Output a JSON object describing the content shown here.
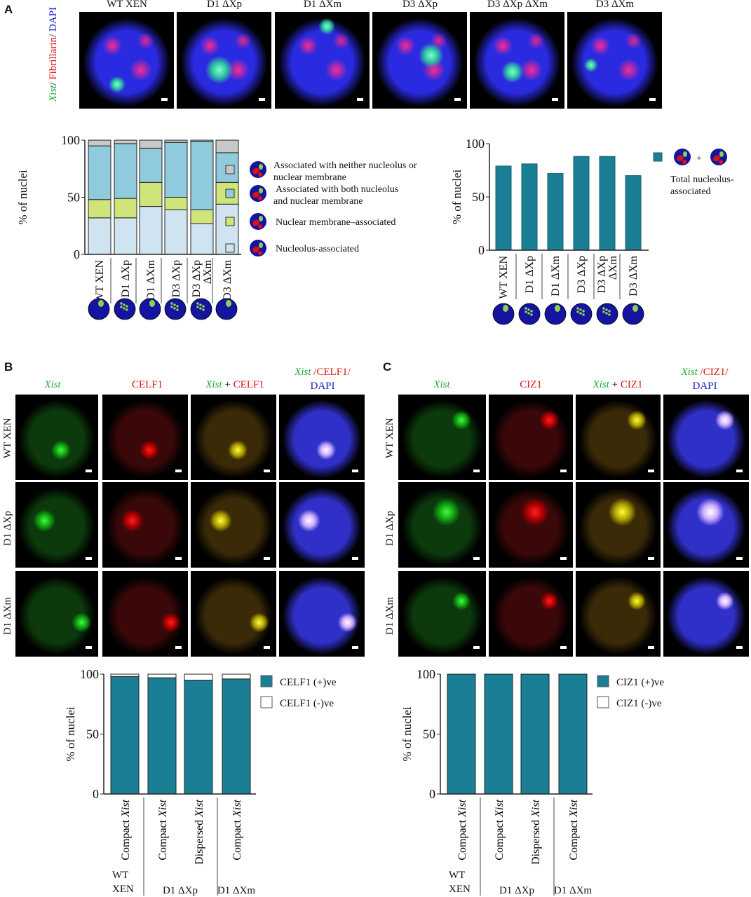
{
  "panels": {
    "a": "A",
    "b": "B",
    "c": "C"
  },
  "panelA": {
    "side_label": {
      "xist": "Xist",
      "sep1": "/ ",
      "fib": "Fibrillarin",
      "sep2": "/ ",
      "dapi": "DAPI"
    },
    "columns": [
      "WT XEN",
      "D1 ΔXp",
      "D1 ΔXm",
      "D3 ΔXp",
      "D3 ΔXp ΔXm",
      "D3 ΔXm"
    ],
    "legend_left": [
      "Associated with neither nucleolus or nuclear membrane",
      "Associated with both nucleolus and nuclear membrane",
      "Nuclear membrane–associated",
      "Nucleolus-associated"
    ],
    "legend_right": {
      "plus": "+",
      "label": "Total nucleolus-associated"
    },
    "nucleus_icons": [
      "compact",
      "dispersed",
      "compact",
      "dispersed",
      "dispersed",
      "compact"
    ]
  },
  "panelB": {
    "columns": {
      "c1": "Xist",
      "c2": "CELF1",
      "c3a": "Xist",
      "c3b": " + ",
      "c3c": "CELF1",
      "c4a": "Xist",
      "c4b": " /",
      "c4c": "CELF1/",
      "c4d": "DAPI"
    },
    "rows": [
      "WT XEN",
      "D1 ΔXp",
      "D1 ΔXm"
    ]
  },
  "panelC": {
    "columns": {
      "c1": "Xist",
      "c2": "CIZ1",
      "c3a": "Xist",
      "c3b": " + ",
      "c3c": "CIZ1",
      "c4a": "Xist",
      "c4b": " /",
      "c4c": "CIZ1/",
      "c4d": "DAPI"
    },
    "rows": [
      "WT XEN",
      "D1 ΔXp",
      "D1 ΔXm"
    ]
  },
  "colors": {
    "teal": "#1a7f94",
    "nucleolus": "#cfe3f1",
    "membrane": "#cfe57a",
    "both": "#8fcbdc",
    "neither": "#c8c8c8",
    "nucleus_blue": "#1414a0",
    "xist_green": "#8fd04a"
  },
  "chart_data": [
    {
      "type": "bar",
      "stacked": true,
      "ylabel": "% of nuclei",
      "ylim": [
        0,
        100
      ],
      "yticks": [
        "0",
        "50",
        "100"
      ],
      "categories": [
        "WT XEN",
        "D1 ΔXp",
        "D1 ΔXm",
        "D3 ΔXp",
        "D3 ΔXp ΔXm",
        "D3 ΔXm"
      ],
      "series": [
        {
          "name": "Nucleolus-associated",
          "values": [
            32,
            32,
            42,
            39,
            27,
            44
          ],
          "color": "#cfe3f1"
        },
        {
          "name": "Nuclear membrane–associated",
          "values": [
            16,
            17,
            21,
            11,
            12,
            19
          ],
          "color": "#cfe57a"
        },
        {
          "name": "Associated with both nucleolus and nuclear membrane",
          "values": [
            47,
            48,
            30,
            48,
            60,
            26
          ],
          "color": "#8fcbdc"
        },
        {
          "name": "Associated with neither nucleolus or nuclear membrane",
          "values": [
            5,
            3,
            7,
            2,
            1,
            11
          ],
          "color": "#c8c8c8"
        }
      ],
      "legend": "right"
    },
    {
      "type": "bar",
      "ylabel": "% of nuclei",
      "ylim": [
        0,
        100
      ],
      "yticks": [
        "0",
        "50",
        "100"
      ],
      "categories": [
        "WT XEN",
        "D1 ΔXp",
        "D1 ΔXm",
        "D3 ΔXp",
        "D3 ΔXp ΔXm",
        "D3 ΔXm"
      ],
      "series": [
        {
          "name": "Total nucleolus-associated",
          "values": [
            79,
            81,
            72,
            88,
            88,
            70
          ],
          "color": "#1a7f94"
        }
      ],
      "legend": "right"
    },
    {
      "type": "bar",
      "stacked": true,
      "ylabel": "% of nuclei",
      "ylim": [
        0,
        100
      ],
      "yticks": [
        "0",
        "50",
        "100"
      ],
      "categories": [
        "Compact Xist",
        "Compact Xist",
        "Dispersed Xist",
        "Compact Xist"
      ],
      "groups": [
        {
          "label": "WT XEN",
          "count": 1
        },
        {
          "label": "D1 ΔXp",
          "count": 2
        },
        {
          "label": "D1 ΔXm",
          "count": 1
        }
      ],
      "series": [
        {
          "name": "CELF1 (+)ve",
          "values": [
            98,
            97,
            95,
            96
          ],
          "color": "#1a7f94"
        },
        {
          "name": "CELF1 (-)ve",
          "values": [
            2,
            3,
            5,
            4
          ],
          "color": "#ffffff"
        }
      ],
      "legend": "right"
    },
    {
      "type": "bar",
      "stacked": true,
      "ylabel": "% of nuclei",
      "ylim": [
        0,
        100
      ],
      "yticks": [
        "0",
        "50",
        "100"
      ],
      "categories": [
        "Compact Xist",
        "Compact Xist",
        "Dispersed Xist",
        "Compact Xist"
      ],
      "groups": [
        {
          "label": "WT XEN",
          "count": 1
        },
        {
          "label": "D1 ΔXp",
          "count": 2
        },
        {
          "label": "D1 ΔXm",
          "count": 1
        }
      ],
      "series": [
        {
          "name": "CIZ1 (+)ve",
          "values": [
            100,
            100,
            100,
            100
          ],
          "color": "#1a7f94"
        },
        {
          "name": "CIZ1 (-)ve",
          "values": [
            0,
            0,
            0,
            0
          ],
          "color": "#ffffff"
        }
      ],
      "legend": "right"
    }
  ]
}
